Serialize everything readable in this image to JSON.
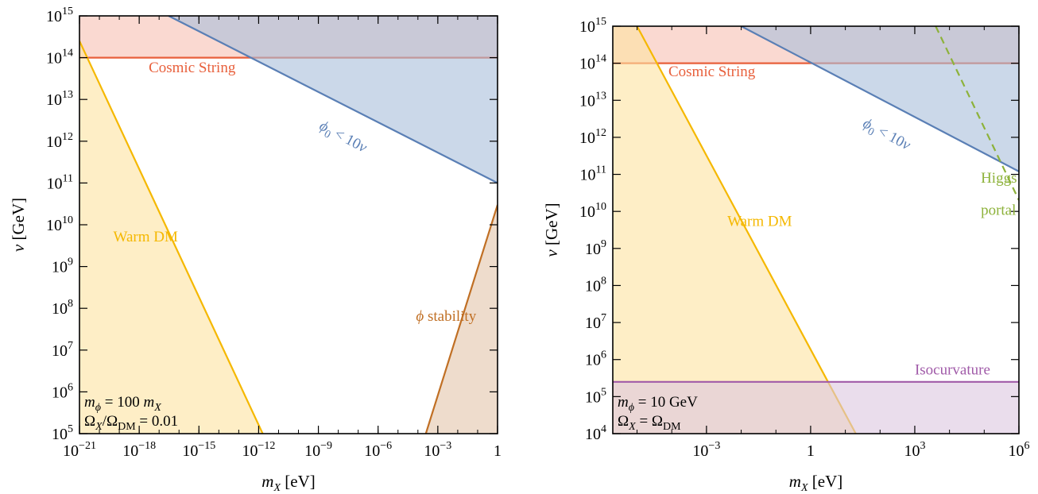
{
  "colors": {
    "cosmic_string": "#e8603c",
    "cosmic_string_fill": "#f6bfb3",
    "phi0": "#5a7fb5",
    "phi0_fill": "#a9bedb",
    "warm_dm": "#f5b800",
    "warm_dm_fill": "#fde3a0",
    "phi_stability": "#c06f24",
    "phi_stability_fill": "#e3c4aa",
    "isocurvature": "#a05aa8",
    "isocurvature_fill": "#dcc6e0",
    "higgs": "#8db23a",
    "frame": "#000000"
  },
  "chart_data": [
    {
      "type": "area",
      "xscale": "log",
      "yscale": "log",
      "xlim": [
        1e-21,
        1
      ],
      "ylim": [
        100000.0,
        1000000000000000.0
      ],
      "xlabel_var": "m",
      "xlabel_sub": "X",
      "xlabel_unit": " [eV]",
      "ylabel_var": "v",
      "ylabel_unit": " [GeV]",
      "x_ticks": [
        {
          "value": 1e-21,
          "base": "10",
          "exp": "−21"
        },
        {
          "value": 1e-18,
          "base": "10",
          "exp": "−18"
        },
        {
          "value": 1e-15,
          "base": "10",
          "exp": "−15"
        },
        {
          "value": 1e-12,
          "base": "10",
          "exp": "−12"
        },
        {
          "value": 1e-09,
          "base": "10",
          "exp": "−9"
        },
        {
          "value": 1e-06,
          "base": "10",
          "exp": "−6"
        },
        {
          "value": 0.001,
          "base": "10",
          "exp": "−3"
        },
        {
          "value": 1,
          "base": "1",
          "exp": ""
        }
      ],
      "y_ticks": [
        {
          "value": 100000.0,
          "base": "10",
          "exp": "5"
        },
        {
          "value": 1000000.0,
          "base": "10",
          "exp": "6"
        },
        {
          "value": 10000000.0,
          "base": "10",
          "exp": "7"
        },
        {
          "value": 100000000.0,
          "base": "10",
          "exp": "8"
        },
        {
          "value": 1000000000.0,
          "base": "10",
          "exp": "9"
        },
        {
          "value": 10000000000.0,
          "base": "10",
          "exp": "10"
        },
        {
          "value": 100000000000.0,
          "base": "10",
          "exp": "11"
        },
        {
          "value": 1000000000000.0,
          "base": "10",
          "exp": "12"
        },
        {
          "value": 10000000000000.0,
          "base": "10",
          "exp": "13"
        },
        {
          "value": 100000000000000.0,
          "base": "10",
          "exp": "14"
        },
        {
          "value": 1000000000000000.0,
          "base": "10",
          "exp": "15"
        }
      ],
      "regions": [
        {
          "name": "Cosmic String",
          "kind": "above",
          "color": "cosmic_string",
          "line": [
            [
              1e-21,
              100000000000000.0
            ],
            [
              1,
              100000000000000.0
            ]
          ]
        },
        {
          "name": "phi0",
          "kind": "above",
          "color": "phi0",
          "line": [
            [
              3e-17,
              1000000000000000.0
            ],
            [
              1,
              100000000000.0
            ]
          ]
        },
        {
          "name": "Warm DM",
          "kind": "left",
          "color": "warm_dm",
          "line": [
            [
              1e-21,
              250000000000000.0
            ],
            [
              1.6e-12,
              100000.0
            ]
          ]
        },
        {
          "name": "phi stability",
          "kind": "right",
          "color": "phi_stability",
          "line": [
            [
              0.00025,
              100000.0
            ],
            [
              1,
              30000000000.0
            ]
          ]
        }
      ],
      "labels": [
        {
          "text": "Cosmic String",
          "color": "cosmic_string",
          "x": 3e-18,
          "y": 45000000000000.0,
          "rotate": 0
        },
        {
          "text_var": "ϕ",
          "text_sub": "0",
          "text_rest": " < 10v",
          "color": "phi0",
          "x": 1e-09,
          "y": 2000000000000.0,
          "rotate": 28
        },
        {
          "text": "Warm DM",
          "color": "warm_dm",
          "x": 5e-20,
          "y": 4000000000.0,
          "rotate": 0
        },
        {
          "text_var": "ϕ",
          "text_rest": " stability",
          "color": "phi_stability",
          "x": 8e-05,
          "y": 50000000.0,
          "rotate": 0
        }
      ],
      "note_lines": [
        {
          "parts": [
            [
              "m",
              "i"
            ],
            [
              "ϕ",
              "sub-i"
            ],
            [
              " = 100 ",
              "n"
            ],
            [
              "m",
              "i"
            ],
            [
              "X",
              "sub-i"
            ]
          ]
        },
        {
          "parts": [
            [
              "Ω",
              "n"
            ],
            [
              "X",
              "sub-i"
            ],
            [
              "/Ω",
              "n"
            ],
            [
              "DM",
              "sub"
            ],
            [
              " = 0.01",
              "n"
            ]
          ]
        }
      ]
    },
    {
      "type": "area",
      "xscale": "log",
      "yscale": "log",
      "xlim": [
        2e-06,
        1000000.0
      ],
      "ylim": [
        10000.0,
        1000000000000000.0
      ],
      "xlabel_var": "m",
      "xlabel_sub": "X",
      "xlabel_unit": " [eV]",
      "ylabel_var": "v",
      "ylabel_unit": " [GeV]",
      "x_ticks": [
        {
          "value": 0.001,
          "base": "10",
          "exp": "−3"
        },
        {
          "value": 1,
          "base": "1",
          "exp": ""
        },
        {
          "value": 1000.0,
          "base": "10",
          "exp": "3"
        },
        {
          "value": 1000000.0,
          "base": "10",
          "exp": "6"
        }
      ],
      "y_ticks": [
        {
          "value": 10000.0,
          "base": "10",
          "exp": "4"
        },
        {
          "value": 100000.0,
          "base": "10",
          "exp": "5"
        },
        {
          "value": 1000000.0,
          "base": "10",
          "exp": "6"
        },
        {
          "value": 10000000.0,
          "base": "10",
          "exp": "7"
        },
        {
          "value": 100000000.0,
          "base": "10",
          "exp": "8"
        },
        {
          "value": 1000000000.0,
          "base": "10",
          "exp": "9"
        },
        {
          "value": 10000000000.0,
          "base": "10",
          "exp": "10"
        },
        {
          "value": 100000000000.0,
          "base": "10",
          "exp": "11"
        },
        {
          "value": 1000000000000.0,
          "base": "10",
          "exp": "12"
        },
        {
          "value": 10000000000000.0,
          "base": "10",
          "exp": "13"
        },
        {
          "value": 100000000000000.0,
          "base": "10",
          "exp": "14"
        },
        {
          "value": 1000000000000000.0,
          "base": "10",
          "exp": "15"
        }
      ],
      "regions": [
        {
          "name": "Cosmic String",
          "kind": "above",
          "color": "cosmic_string",
          "line": [
            [
              2e-06,
              100000000000000.0
            ],
            [
              1000000.0,
              100000000000000.0
            ]
          ]
        },
        {
          "name": "phi0",
          "kind": "above",
          "color": "phi0",
          "line": [
            [
              0.01,
              1000000000000000.0
            ],
            [
              1000000.0,
              120000000000.0
            ]
          ]
        },
        {
          "name": "Warm DM",
          "kind": "left",
          "color": "warm_dm",
          "line": [
            [
              1e-05,
              1000000000000000.0
            ],
            [
              20,
              10000.0
            ]
          ]
        },
        {
          "name": "Isocurvature",
          "kind": "below",
          "color": "isocurvature",
          "line": [
            [
              2e-06,
              250000.0
            ],
            [
              1000000.0,
              250000.0
            ]
          ]
        },
        {
          "name": "Higgs portal",
          "kind": "dashed",
          "color": "higgs",
          "line": [
            [
              4000.0,
              1000000000000000.0
            ],
            [
              1000000.0,
              20000000000.0
            ]
          ]
        }
      ],
      "labels": [
        {
          "text": "Cosmic String",
          "color": "cosmic_string",
          "x": 8e-05,
          "y": 45000000000000.0,
          "rotate": 0
        },
        {
          "text_var": "ϕ",
          "text_sub": "0",
          "text_rest": " < 10v",
          "color": "phi0",
          "x": 30,
          "y": 2000000000000.0,
          "rotate": 28
        },
        {
          "text": "Warm DM",
          "color": "warm_dm",
          "x": 0.004,
          "y": 4000000000.0,
          "rotate": 0
        },
        {
          "text": "Higgs",
          "color": "higgs",
          "x": 80000.0,
          "y": 60000000000.0,
          "rotate": 0
        },
        {
          "text": "portal",
          "color": "higgs",
          "x": 80000.0,
          "y": 8000000000.0,
          "rotate": 0
        },
        {
          "text": "Isocurvature",
          "color": "isocurvature",
          "x": 1000.0,
          "y": 400000.0,
          "rotate": 0
        }
      ],
      "note_lines": [
        {
          "parts": [
            [
              "m",
              "i"
            ],
            [
              "ϕ",
              "sub-i"
            ],
            [
              " = 10 GeV",
              "n"
            ]
          ]
        },
        {
          "parts": [
            [
              "Ω",
              "n"
            ],
            [
              "X",
              "sub-i"
            ],
            [
              " = Ω",
              "n"
            ],
            [
              "DM",
              "sub"
            ]
          ]
        }
      ]
    }
  ]
}
